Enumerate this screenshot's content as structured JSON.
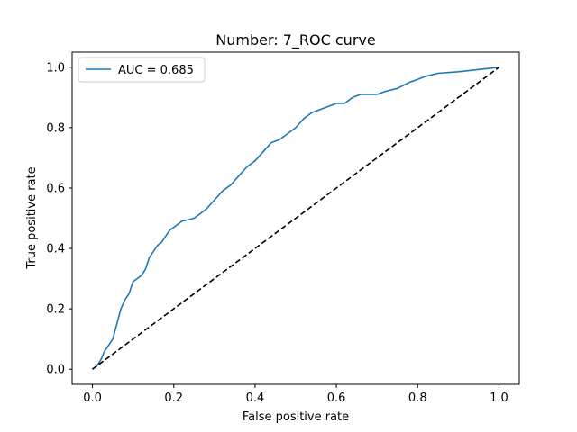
{
  "chart_data": {
    "type": "line",
    "title": "Number: 7_ROC curve",
    "xlabel": "False positive rate",
    "ylabel": "True positive rate",
    "xlim": [
      -0.05,
      1.05
    ],
    "ylim": [
      -0.05,
      1.05
    ],
    "xticks": [
      "0.0",
      "0.2",
      "0.4",
      "0.6",
      "0.8",
      "1.0"
    ],
    "yticks": [
      "0.0",
      "0.2",
      "0.4",
      "0.6",
      "0.8",
      "1.0"
    ],
    "grid": false,
    "legend_position": "top-left",
    "series": [
      {
        "name": "AUC = 0.685",
        "color": "#1f77b4",
        "style": "solid",
        "x": [
          0.0,
          0.01,
          0.02,
          0.03,
          0.04,
          0.05,
          0.06,
          0.07,
          0.08,
          0.09,
          0.1,
          0.11,
          0.12,
          0.13,
          0.14,
          0.15,
          0.16,
          0.17,
          0.18,
          0.19,
          0.2,
          0.22,
          0.25,
          0.28,
          0.3,
          0.32,
          0.34,
          0.36,
          0.38,
          0.4,
          0.42,
          0.44,
          0.46,
          0.48,
          0.5,
          0.52,
          0.54,
          0.56,
          0.58,
          0.6,
          0.62,
          0.64,
          0.66,
          0.68,
          0.7,
          0.72,
          0.75,
          0.78,
          0.8,
          0.82,
          0.85,
          0.9,
          1.0
        ],
        "y": [
          0.0,
          0.01,
          0.03,
          0.06,
          0.08,
          0.1,
          0.15,
          0.2,
          0.23,
          0.25,
          0.29,
          0.3,
          0.31,
          0.33,
          0.37,
          0.39,
          0.41,
          0.42,
          0.44,
          0.46,
          0.47,
          0.49,
          0.5,
          0.53,
          0.56,
          0.59,
          0.61,
          0.64,
          0.67,
          0.69,
          0.72,
          0.75,
          0.76,
          0.78,
          0.8,
          0.83,
          0.85,
          0.86,
          0.87,
          0.88,
          0.88,
          0.9,
          0.91,
          0.91,
          0.91,
          0.92,
          0.93,
          0.95,
          0.96,
          0.97,
          0.98,
          0.985,
          1.0
        ]
      },
      {
        "name": "",
        "color": "#000000",
        "style": "dashed",
        "x": [
          0.0,
          1.0
        ],
        "y": [
          0.0,
          1.0
        ]
      }
    ]
  }
}
